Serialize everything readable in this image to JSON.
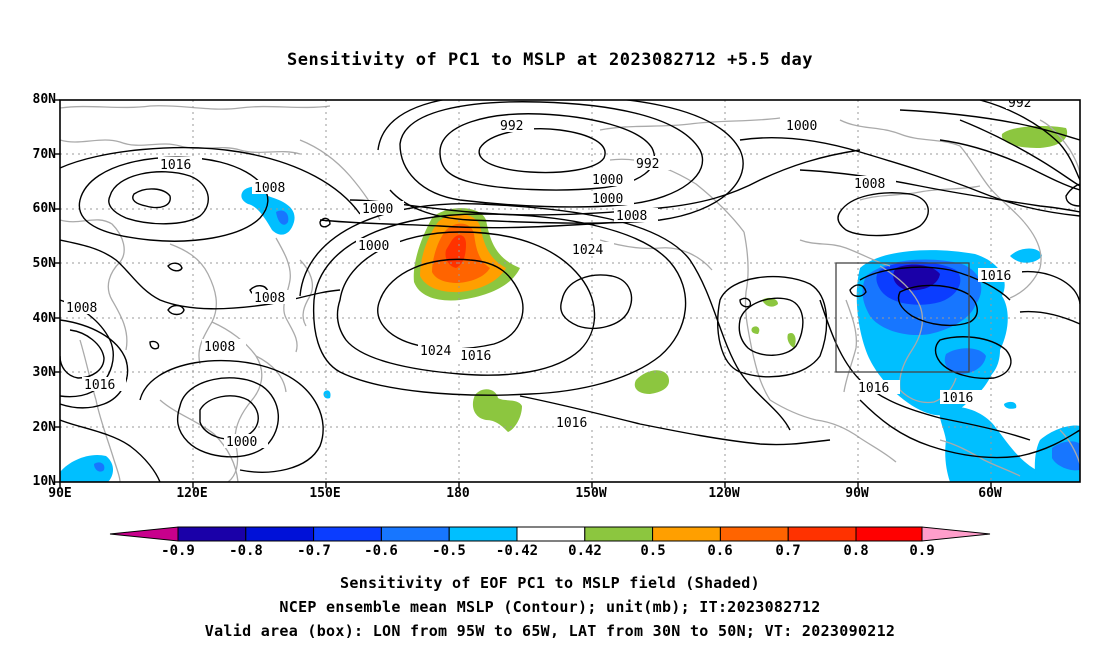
{
  "title": "Sensitivity of PC1 to MSLP at 2023082712 +5.5 day",
  "map": {
    "lat_labels": [
      "80N",
      "70N",
      "60N",
      "50N",
      "40N",
      "30N",
      "20N",
      "10N"
    ],
    "lon_labels": [
      "90E",
      "120E",
      "150E",
      "180",
      "150W",
      "120W",
      "90W",
      "60W"
    ],
    "contour_labels": {
      "c992_a": "992",
      "c992_b": "992",
      "c992_c": "992",
      "c1000_a": "1000",
      "c1000_b": "1000",
      "c1000_c": "1000",
      "c1000_d": "1000",
      "c1000_e": "1000",
      "c1000_f": "1000",
      "c1008_a": "1008",
      "c1008_b": "1008",
      "c1008_c": "1008",
      "c1008_d": "1008",
      "c1008_e": "1008",
      "c1008_f": "1008",
      "c1016_a": "1016",
      "c1016_b": "1016",
      "c1016_c": "1016",
      "c1016_d": "1016",
      "c1016_e": "1016",
      "c1016_f": "1016",
      "c1016_g": "1016",
      "c1024_a": "1024",
      "c1024_b": "1024"
    },
    "valid_box": {
      "lon_from": "95W",
      "lon_to": "65W",
      "lat_from": "30N",
      "lat_to": "50N"
    },
    "colors": {
      "neg_0_9": "#1a00a8",
      "neg_0_8": "#0011d8",
      "neg_0_7": "#0b3dff",
      "neg_0_6": "#1776ff",
      "neg_0_5": "#00bfff",
      "pos_0_5": "#8cc63f",
      "pos_0_6": "#ff9f00",
      "pos_0_7": "#ff6400",
      "pos_0_8": "#ff3200",
      "pos_0_9": "#ff0000",
      "over_neg": "#c8008c",
      "over_pos": "#ff9ecb"
    }
  },
  "colorbar": {
    "labels": [
      "-0.9",
      "-0.8",
      "-0.7",
      "-0.6",
      "-0.5",
      "-0.42",
      "0.42",
      "0.5",
      "0.6",
      "0.7",
      "0.8",
      "0.9"
    ]
  },
  "captions": {
    "line1": "Sensitivity of EOF PC1 to MSLP field (Shaded)",
    "line2": "NCEP ensemble mean MSLP (Contour); unit(mb); IT:2023082712",
    "line3": "Valid area (box): LON from 95W to 65W, LAT from 30N to 50N; VT: 2023090212"
  }
}
